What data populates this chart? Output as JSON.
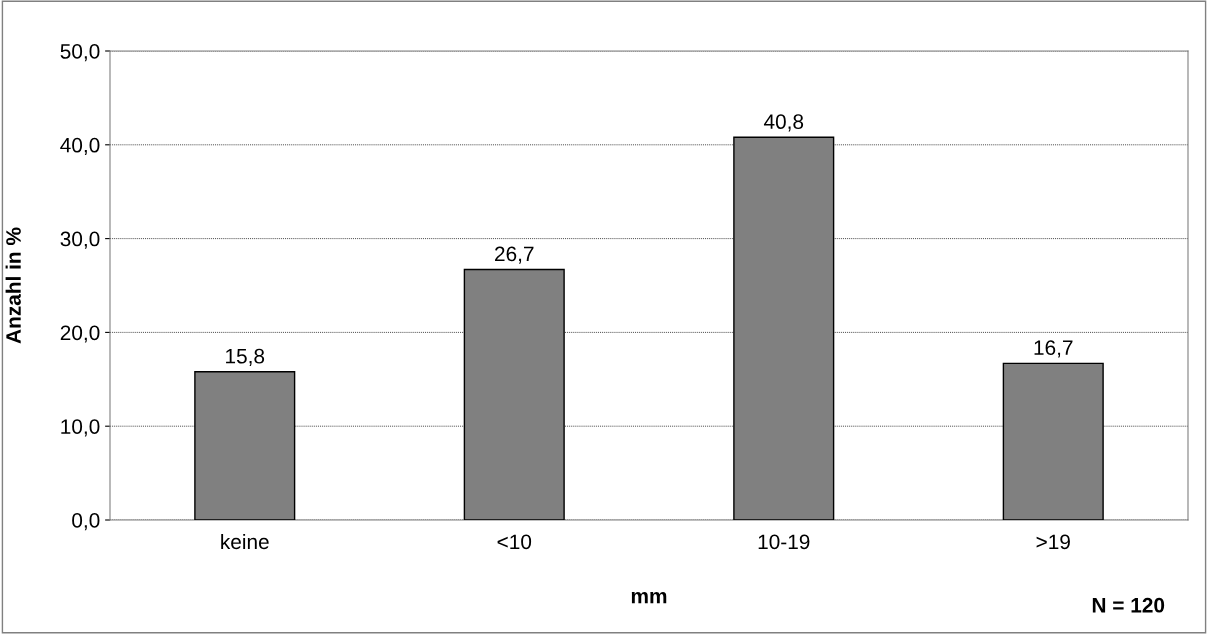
{
  "chart_data": {
    "type": "bar",
    "categories": [
      "keine",
      "<10",
      "10-19",
      ">19"
    ],
    "values": [
      15.8,
      26.7,
      40.8,
      16.7
    ],
    "value_labels": [
      "15,8",
      "26,7",
      "40,8",
      "16,7"
    ],
    "color": "#808080",
    "xlabel": "mm",
    "ylabel": "Anzahl in %",
    "annotations": [
      "N = 120"
    ],
    "ylim": [
      0,
      50
    ],
    "yticks": [
      {
        "value": 0,
        "label": "0,0"
      },
      {
        "value": 10,
        "label": "10,0"
      },
      {
        "value": 20,
        "label": "20,0"
      },
      {
        "value": 30,
        "label": "30,0"
      },
      {
        "value": 40,
        "label": "40,0"
      },
      {
        "value": 50,
        "label": "50,0"
      }
    ],
    "grid": "y",
    "legend": false
  }
}
